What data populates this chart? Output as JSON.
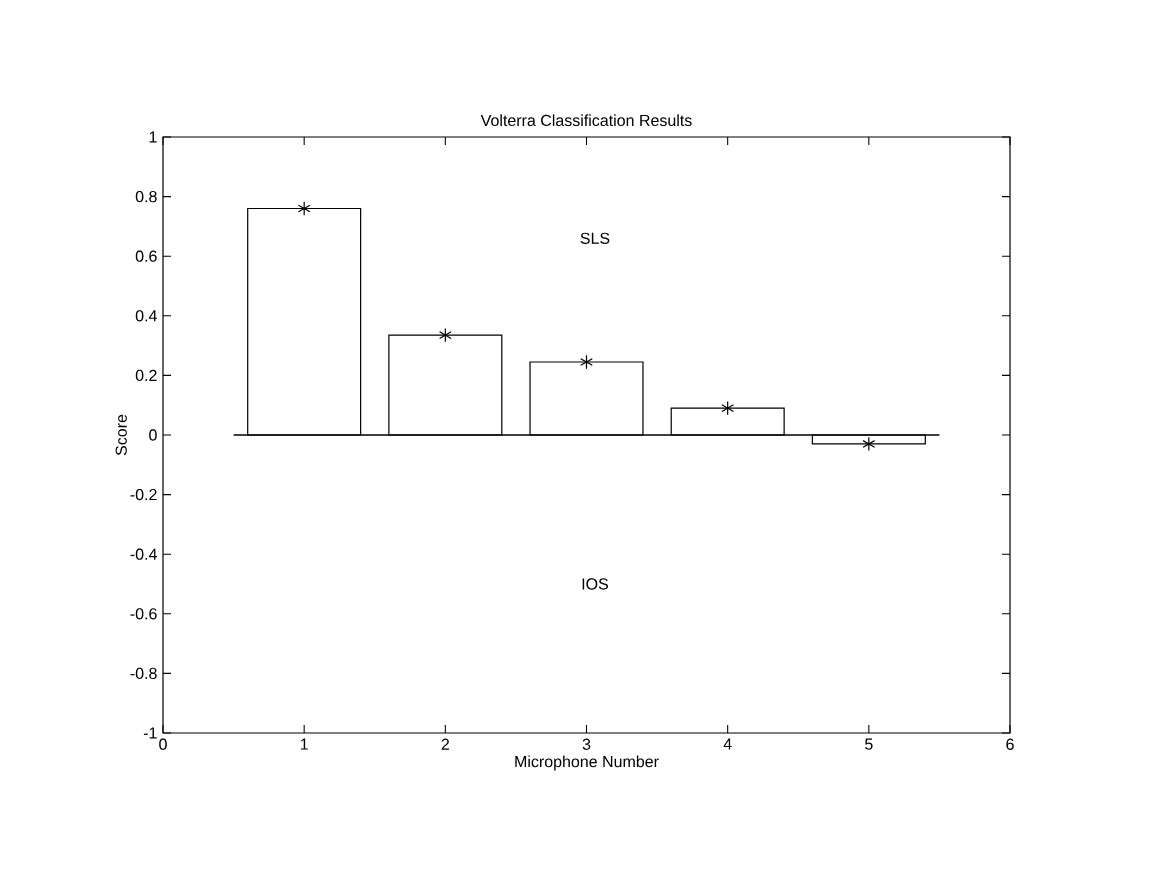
{
  "chart_data": {
    "type": "bar",
    "title": "Volterra Classification Results",
    "xlabel": "Microphone Number",
    "ylabel": "Score",
    "x": [
      1,
      2,
      3,
      4,
      5
    ],
    "series": [
      {
        "color": "#ffffff",
        "values": [
          0.76,
          0.335,
          0.245,
          0.09,
          -0.03
        ]
      },
      {
        "type": "scatter",
        "color": "#000000",
        "marker": "cross",
        "values": [
          0.76,
          0.335,
          0.245,
          0.09,
          -0.03
        ]
      }
    ],
    "xlim": [
      0,
      6
    ],
    "ylim": [
      -1,
      1
    ],
    "xticks": [
      0,
      1,
      2,
      3,
      4,
      5,
      6
    ],
    "yticks": [
      -1,
      -0.8,
      -0.6,
      -0.4,
      -0.2,
      0,
      0.2,
      0.4,
      0.6,
      0.8,
      1
    ],
    "ref_lines": [
      {
        "axis": "y",
        "value": 0
      }
    ],
    "annotations": [
      "SLS",
      "IOS"
    ]
  }
}
